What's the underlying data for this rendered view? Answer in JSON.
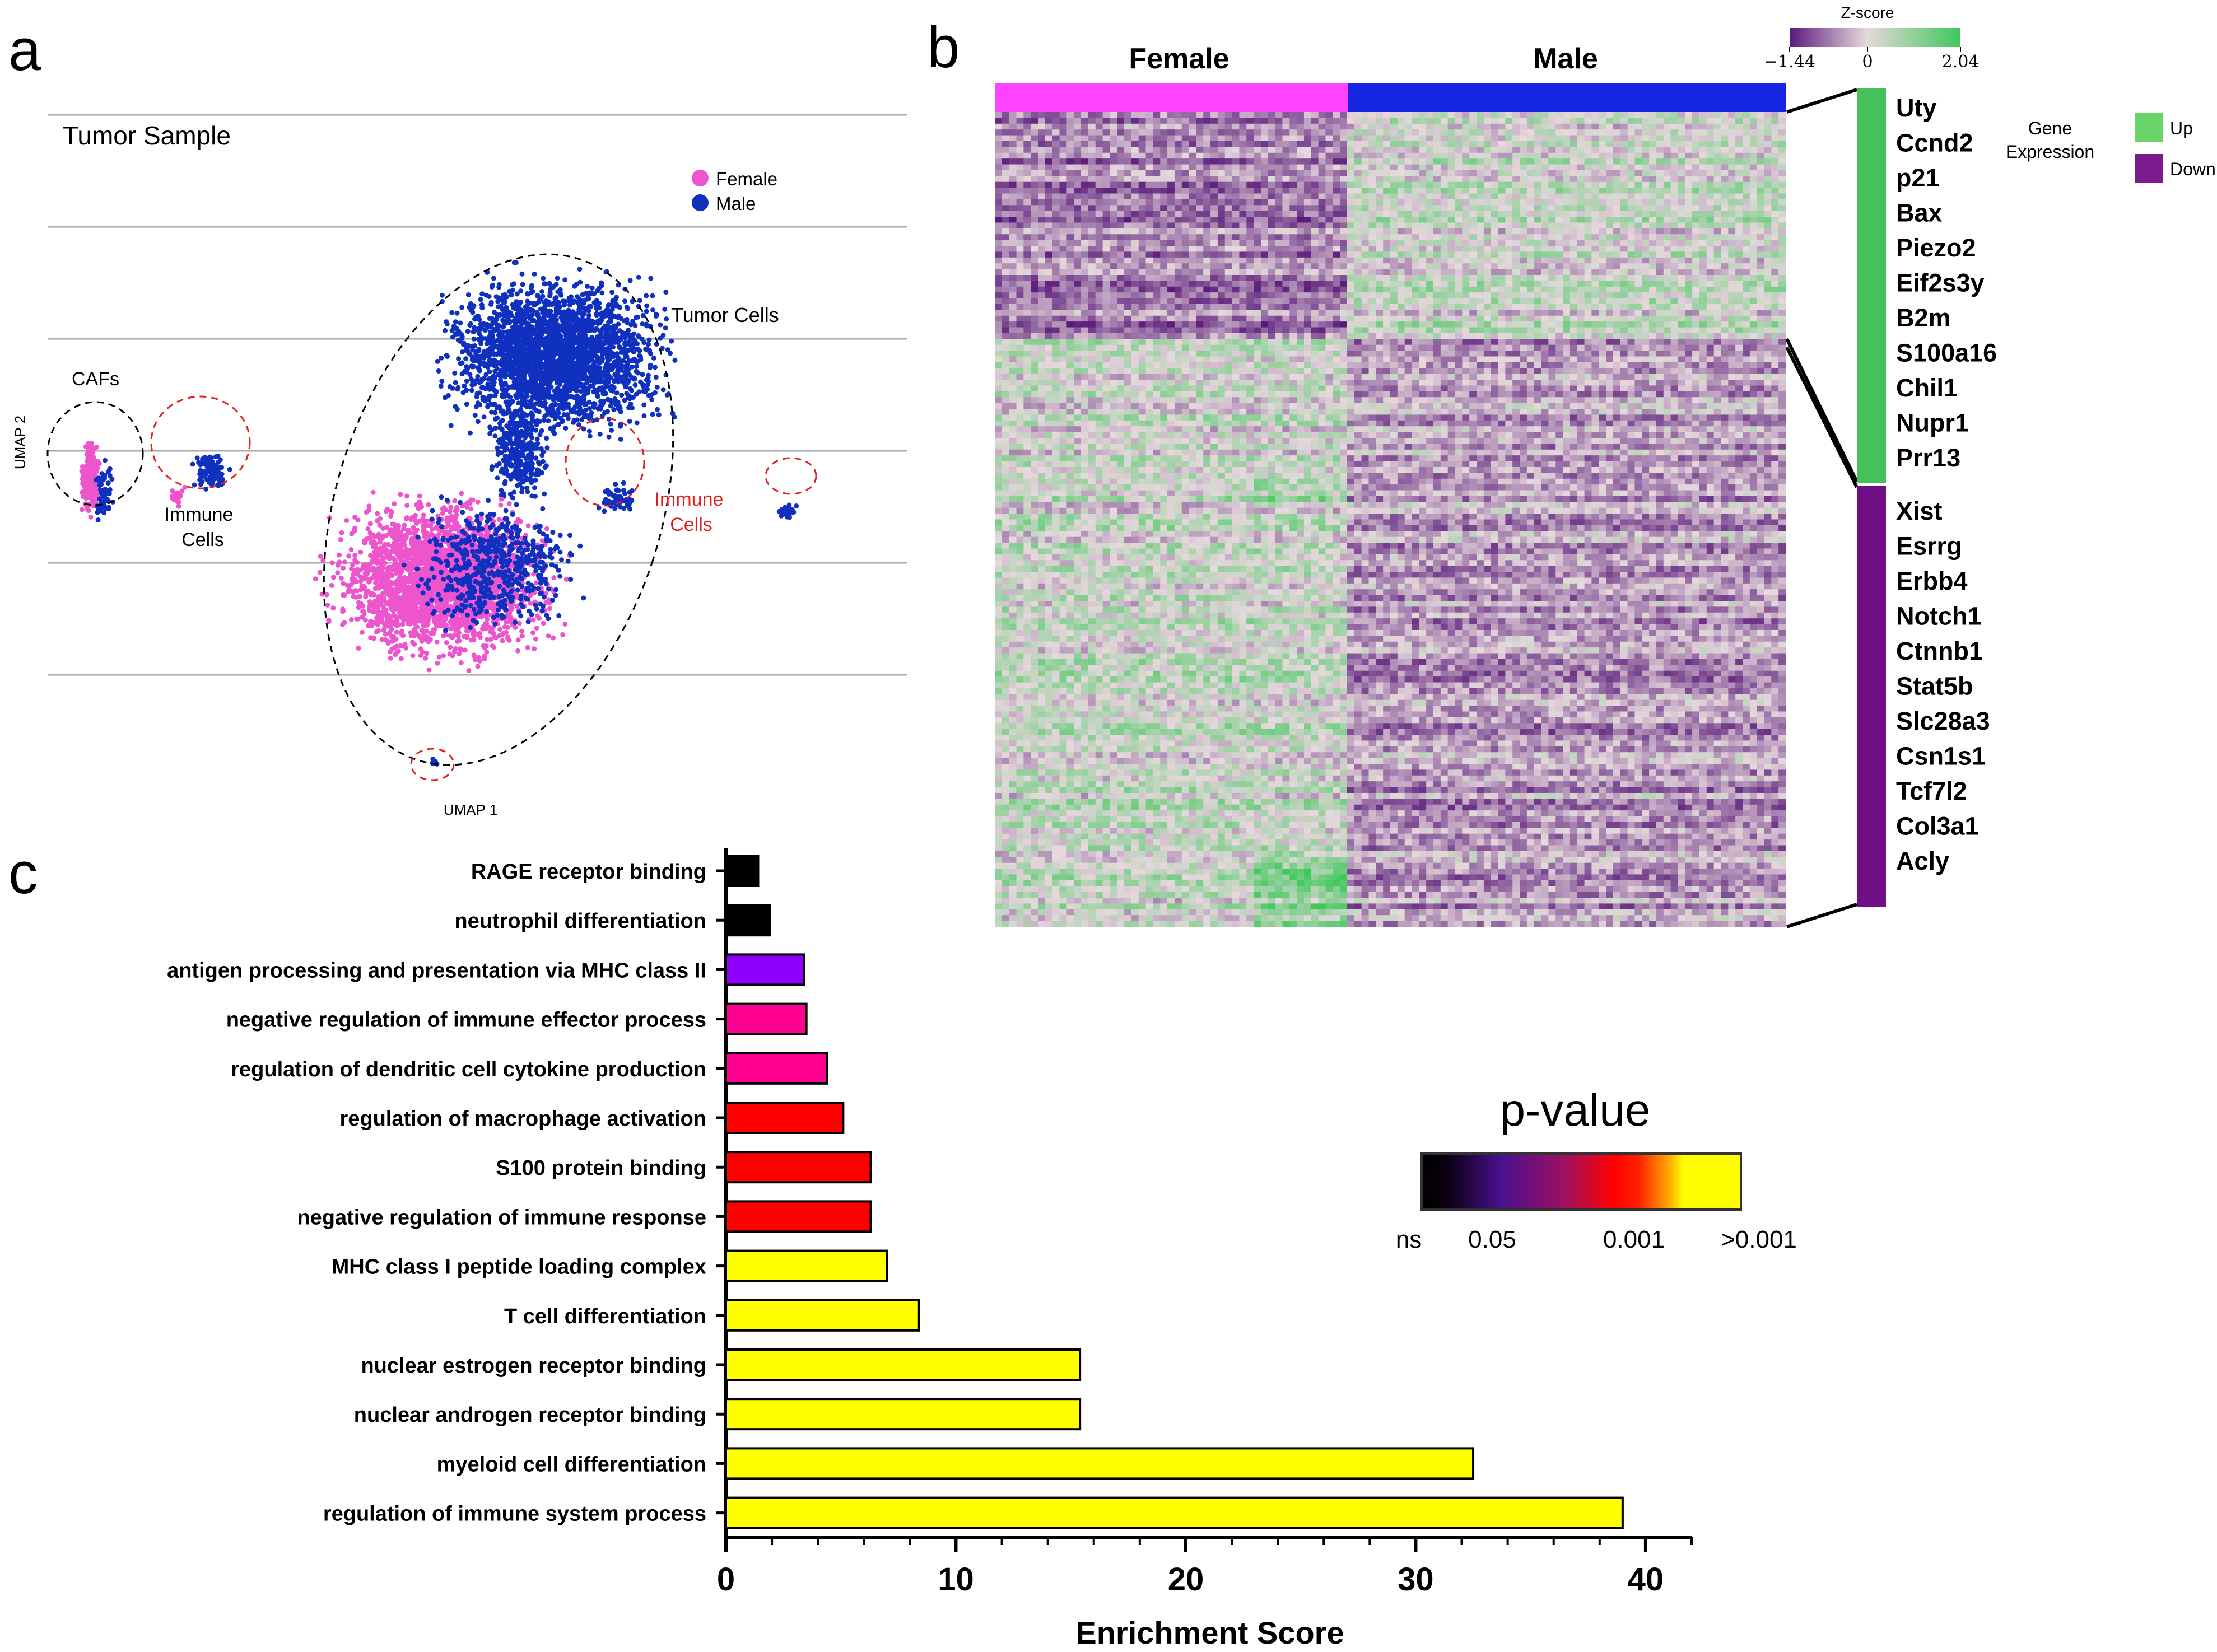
{
  "chart_data": [
    {
      "type": "scatter",
      "panel_label": "a",
      "title": "Tumor Sample",
      "xlabel": "UMAP 1",
      "ylabel": "UMAP 2",
      "legend": {
        "placement": "top-right",
        "entries": [
          {
            "name": "Female",
            "color": "#ee55cc"
          },
          {
            "name": "Male",
            "color": "#1030c0"
          }
        ]
      },
      "xlim": [
        0,
        100
      ],
      "ylim": [
        0,
        100
      ],
      "annotations": [
        {
          "text": "CAFs",
          "color": "#000000"
        },
        {
          "text": "Immune",
          "color": "#000000"
        },
        {
          "text": "Cells",
          "color": "#000000"
        },
        {
          "text": "Tumor Cells",
          "color": "#000000"
        },
        {
          "text": "Immune",
          "color": "#e02020"
        },
        {
          "text": "Cells",
          "color": "#e02020"
        }
      ],
      "clusters": [
        {
          "name": "Tumor cells male",
          "series": "Male",
          "center": [
            59,
            64
          ],
          "spread": [
            12,
            11
          ],
          "count": 2600
        },
        {
          "name": "Tumor cells bridge",
          "series": "Male",
          "center": [
            55,
            50
          ],
          "spread": [
            3,
            7
          ],
          "count": 300
        },
        {
          "name": "Tumor cells female",
          "series": "Female",
          "center": [
            46,
            31
          ],
          "spread": [
            12,
            11
          ],
          "count": 2600
        },
        {
          "name": "Tumor cells female (male)",
          "series": "Male",
          "center": [
            52,
            33
          ],
          "spread": [
            9,
            9
          ],
          "count": 550
        },
        {
          "name": "CAFs",
          "series": "Female",
          "center": [
            5,
            46
          ],
          "spread": [
            1,
            5
          ],
          "count": 260
        },
        {
          "name": "CAFs",
          "series": "Male",
          "center": [
            6.5,
            45
          ],
          "spread": [
            1,
            5
          ],
          "count": 60
        },
        {
          "name": "Immune cells 1",
          "series": "Male",
          "center": [
            19,
            47
          ],
          "spread": [
            2,
            3
          ],
          "count": 90
        },
        {
          "name": "Immune cells 1",
          "series": "Female",
          "center": [
            15,
            43
          ],
          "spread": [
            1,
            2
          ],
          "count": 20
        },
        {
          "name": "Immune cells 2",
          "series": "Male",
          "center": [
            66,
            43
          ],
          "spread": [
            2,
            2
          ],
          "count": 60
        },
        {
          "name": "Immune cells 3",
          "series": "Male",
          "center": [
            86,
            41
          ],
          "spread": [
            1,
            1
          ],
          "count": 40
        },
        {
          "name": "Immune cells 4",
          "series": "Male",
          "center": [
            45,
            4
          ],
          "spread": [
            0.5,
            0.6
          ],
          "count": 10
        }
      ]
    },
    {
      "type": "heatmap",
      "panel_label": "b",
      "columns": [
        "Female",
        "Male"
      ],
      "column_colors": [
        "#ff44ff",
        "#1525e0"
      ],
      "colorbar": {
        "title": "Z-score",
        "min": "−1.44",
        "mid": "0",
        "max": "2.04",
        "colors": [
          "#5a1a7a",
          "#e6d8dc",
          "#3ec85a"
        ]
      },
      "legend_title": [
        "Gene",
        "Expression"
      ],
      "legend": [
        {
          "name": "Up",
          "color": "#6ad46a"
        },
        {
          "name": "Down",
          "color": "#7a1a8c"
        }
      ],
      "rows_up": [
        "Uty",
        "Ccnd2",
        "p21",
        "Bax",
        "Piezo2",
        "Eif2s3y",
        "B2m",
        "S100a16",
        "Chil1",
        "Nupr1",
        "Prr13"
      ],
      "rows_down": [
        "Xist",
        "Esrrg",
        "Erbb4",
        "Notch1",
        "Ctnnb1",
        "Stat5b",
        "Slc28a3",
        "Csn1s1",
        "Tcf7l2",
        "Col3a1",
        "Acly"
      ],
      "up_color": "#46c05a",
      "down_color": "#6e0f86"
    },
    {
      "type": "bar",
      "orientation": "horizontal",
      "panel_label": "c",
      "xlabel": "Enrichment Score",
      "xlim": [
        0,
        42
      ],
      "xticks": [
        0,
        10,
        20,
        30,
        40
      ],
      "categories": [
        "RAGE receptor binding",
        "neutrophil differentiation",
        "antigen processing and presentation via MHC class II",
        "negative regulation of immune effector process",
        "regulation of dendritic cell cytokine production",
        "regulation of macrophage activation",
        "S100 protein binding",
        "negative regulation of immune response",
        "MHC class I peptide loading complex",
        "T cell differentiation",
        "nuclear estrogen receptor binding",
        "nuclear androgen receptor binding",
        "myeloid cell differentiation",
        "regulation of immune system process"
      ],
      "values": [
        1.4,
        1.9,
        3.4,
        3.5,
        4.4,
        5.1,
        6.3,
        6.3,
        7.0,
        8.4,
        15.4,
        15.4,
        32.5,
        39.0
      ],
      "colors": [
        "#000000",
        "#000000",
        "#9000ff",
        "#ff0090",
        "#ff0090",
        "#ff0000",
        "#ff0000",
        "#ff0000",
        "#ffff00",
        "#ffff00",
        "#ffff00",
        "#ffff00",
        "#ffff00",
        "#ffff00"
      ],
      "colorbar": {
        "title": "p-value",
        "labels": [
          "ns",
          "0.05",
          "0.001",
          ">0.001"
        ]
      }
    }
  ]
}
